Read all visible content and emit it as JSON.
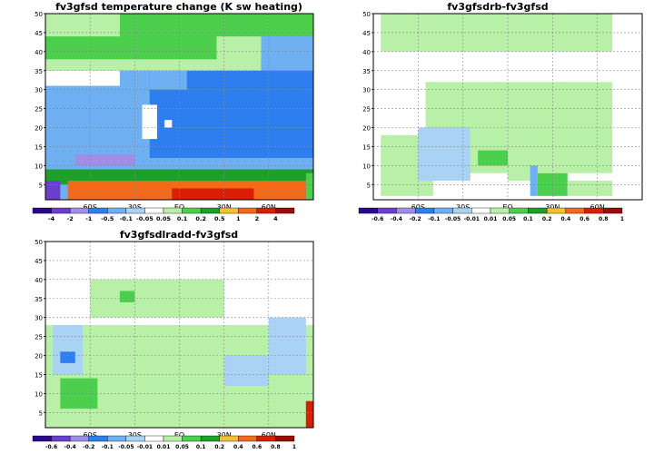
{
  "colors": {
    "dark_purple": "#2a0a8c",
    "purple": "#6a3fd0",
    "lavender": "#a08ee6",
    "blue": "#2f7ef0",
    "light_blue": "#6fb0f2",
    "pale_blue": "#a9d2f5",
    "white": "#ffffff",
    "pale_green": "#b8f0a8",
    "green": "#4ccf4c",
    "dark_green": "#1e9e2a",
    "yellow": "#f2c230",
    "orange": "#f26a1b",
    "red": "#d81e05",
    "dark_red": "#9e0a0a"
  },
  "chart_data": [
    {
      "type": "heatmap",
      "title": "fv3gfsd temperature change (K sw heating)",
      "xticks": [
        "60S",
        "30S",
        "EQ",
        "30N",
        "60N"
      ],
      "yticks": [
        "5",
        "10",
        "15",
        "20",
        "25",
        "30",
        "35",
        "40",
        "45",
        "50"
      ],
      "xlim": [
        -90,
        90
      ],
      "ylim": [
        1,
        50
      ],
      "grid": true,
      "colorbar": {
        "labels": [
          "-4",
          "-2",
          "-1",
          "-0.5",
          "-0.1",
          "-0.05",
          "0.05",
          "0.1",
          "0.2",
          "0.5",
          "1",
          "2",
          "4"
        ],
        "colors": [
          "#2a0a8c",
          "#6a3fd0",
          "#a08ee6",
          "#2f7ef0",
          "#6fb0f2",
          "#a9d2f5",
          "#ffffff",
          "#b8f0a8",
          "#4ccf4c",
          "#1e9e2a",
          "#f2c230",
          "#f26a1b",
          "#d81e05",
          "#9e0a0a"
        ]
      }
    },
    {
      "type": "heatmap",
      "title": "fv3gfsdrb-fv3gfsd",
      "xticks": [
        "60S",
        "30S",
        "EQ",
        "30N",
        "60N"
      ],
      "yticks": [
        "5",
        "10",
        "15",
        "20",
        "25",
        "30",
        "35",
        "40",
        "45",
        "50"
      ],
      "xlim": [
        -90,
        90
      ],
      "ylim": [
        1,
        50
      ],
      "grid": true,
      "colorbar": {
        "labels": [
          "-0.6",
          "-0.4",
          "-0.2",
          "-0.1",
          "-0.05",
          "-0.01",
          "0.01",
          "0.05",
          "0.1",
          "0.2",
          "0.4",
          "0.6",
          "0.8",
          "1"
        ],
        "colors": [
          "#2a0a8c",
          "#6a3fd0",
          "#a08ee6",
          "#2f7ef0",
          "#6fb0f2",
          "#a9d2f5",
          "#ffffff",
          "#b8f0a8",
          "#4ccf4c",
          "#1e9e2a",
          "#f2c230",
          "#f26a1b",
          "#d81e05",
          "#9e0a0a"
        ]
      }
    },
    {
      "type": "heatmap",
      "title": "fv3gfsdlradd-fv3gfsd",
      "xticks": [
        "60S",
        "30S",
        "EQ",
        "30N",
        "60N"
      ],
      "yticks": [
        "5",
        "10",
        "15",
        "20",
        "25",
        "30",
        "35",
        "40",
        "45",
        "50"
      ],
      "xlim": [
        -90,
        90
      ],
      "ylim": [
        1,
        50
      ],
      "grid": true,
      "colorbar": {
        "labels": [
          "-0.6",
          "-0.4",
          "-0.2",
          "-0.1",
          "-0.05",
          "-0.01",
          "0.01",
          "0.05",
          "0.1",
          "0.2",
          "0.4",
          "0.6",
          "0.8",
          "1"
        ],
        "colors": [
          "#2a0a8c",
          "#6a3fd0",
          "#a08ee6",
          "#2f7ef0",
          "#6fb0f2",
          "#a9d2f5",
          "#ffffff",
          "#b8f0a8",
          "#4ccf4c",
          "#1e9e2a",
          "#f2c230",
          "#f26a1b",
          "#d81e05",
          "#9e0a0a"
        ]
      }
    }
  ]
}
